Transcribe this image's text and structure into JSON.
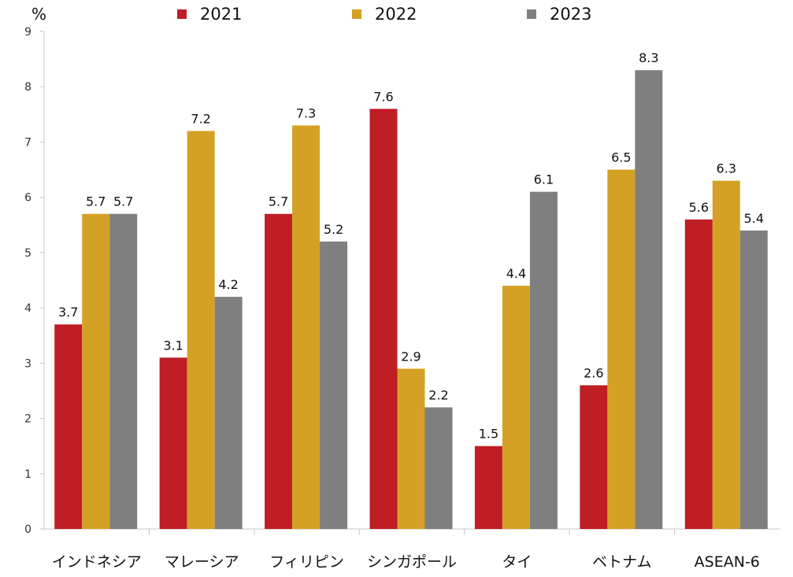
{
  "chart_data": {
    "type": "bar",
    "ylabel": "%",
    "ylim": [
      0,
      9
    ],
    "yticks": [
      "0",
      "1",
      "2",
      "3",
      "4",
      "5",
      "6",
      "7",
      "8",
      "9"
    ],
    "categories": [
      "インドネシア",
      "マレーシア",
      "フィリピン",
      "シンガポール",
      "タイ",
      "ベトナム",
      "ASEAN-6"
    ],
    "series": [
      {
        "name": "2021",
        "color": "#be1e24",
        "values": [
          3.7,
          3.1,
          5.7,
          7.6,
          1.5,
          2.6,
          5.6
        ],
        "labels": [
          "3.7",
          "3.1",
          "5.7",
          "7.6",
          "1.5",
          "2.6",
          "5.6"
        ]
      },
      {
        "name": "2022",
        "color": "#d4a124",
        "values": [
          5.7,
          7.2,
          7.3,
          2.9,
          4.4,
          6.5,
          6.3
        ],
        "labels": [
          "5.7",
          "7.2",
          "7.3",
          "2.9",
          "4.4",
          "6.5",
          "6.3"
        ]
      },
      {
        "name": "2023",
        "color": "#7f7f7f",
        "values": [
          5.7,
          4.2,
          5.2,
          2.2,
          6.1,
          8.3,
          5.4
        ],
        "labels": [
          "5.7",
          "4.2",
          "5.2",
          "2.2",
          "6.1",
          "8.3",
          "5.4"
        ]
      }
    ],
    "legend_position": "top",
    "grid": false
  }
}
